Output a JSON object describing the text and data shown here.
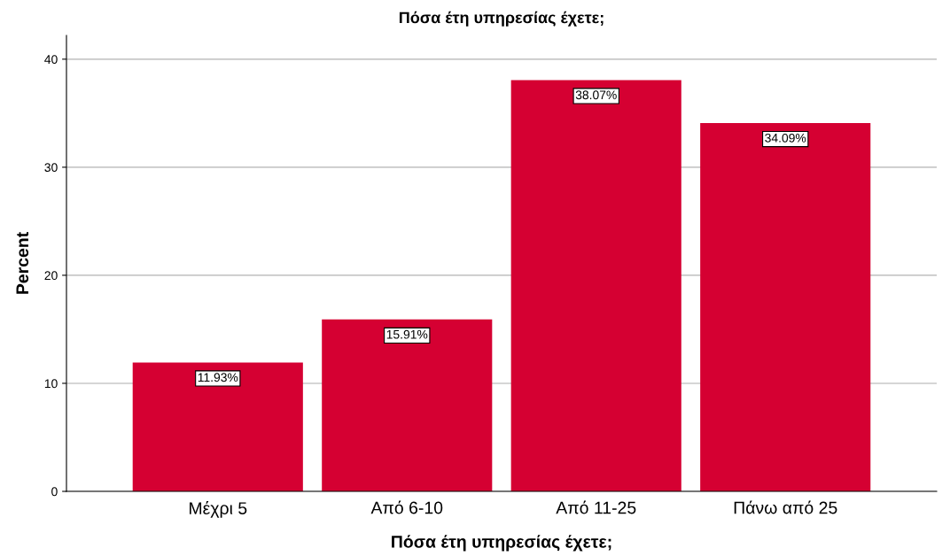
{
  "chart_data": {
    "type": "bar",
    "title": "Πόσα έτη υπηρεσίας έχετε;",
    "xlabel": "Πόσα έτη υπηρεσίας έχετε;",
    "ylabel": "Percent",
    "categories": [
      "Μέχρι 5",
      "Από 6-10",
      "Από 11-25",
      "Πάνω από 25"
    ],
    "values": [
      11.93,
      15.91,
      38.07,
      34.09
    ],
    "value_labels": [
      "11.93%",
      "15.91%",
      "38.07%",
      "34.09%"
    ],
    "color": "#d50032",
    "ylim": [
      0,
      42.2
    ],
    "yticks": [
      0,
      10,
      20,
      30,
      40
    ],
    "grid": "y"
  }
}
